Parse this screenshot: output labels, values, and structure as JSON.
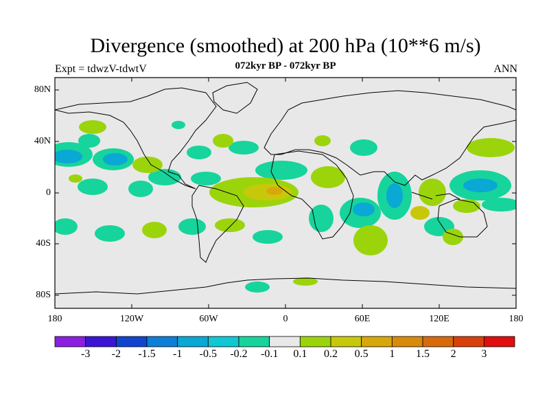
{
  "title": "Divergence (smoothed) at 200 hPa (10**6 m/s)",
  "left_label": "Expt = tdwzV-tdwtV",
  "center_label": "072kyr BP - 072kyr BP",
  "right_label": "ANN",
  "lat_ticks": [
    "80N",
    "40N",
    "0",
    "40S",
    "80S"
  ],
  "lon_ticks": [
    "180",
    "120W",
    "60W",
    "0",
    "60E",
    "120E",
    "180"
  ],
  "colorbar": {
    "colors": [
      "#8a1fe0",
      "#3b16d6",
      "#1245cf",
      "#0d7fd9",
      "#0aa8d4",
      "#0ec8d2",
      "#16d49c",
      "#e8e8e8",
      "#9cd40c",
      "#c8c80a",
      "#d8a80a",
      "#d88a0a",
      "#d86a0c",
      "#d8400c",
      "#e00e0e"
    ],
    "labels": [
      "-3",
      "-2",
      "-1.5",
      "-1",
      "-0.5",
      "-0.2",
      "-0.1",
      "0.1",
      "0.2",
      "0.5",
      "1",
      "1.5",
      "2",
      "3"
    ]
  },
  "map_colors": {
    "background": "#e8e8e8",
    "neg_weak": "#16d49c",
    "neg_mid": "#0ec8d2",
    "neg_strong": "#0aa8d4",
    "pos_weak": "#9cd40c",
    "pos_mid": "#c8c80a",
    "pos_strong": "#d8a80a",
    "coast": "#000000"
  }
}
